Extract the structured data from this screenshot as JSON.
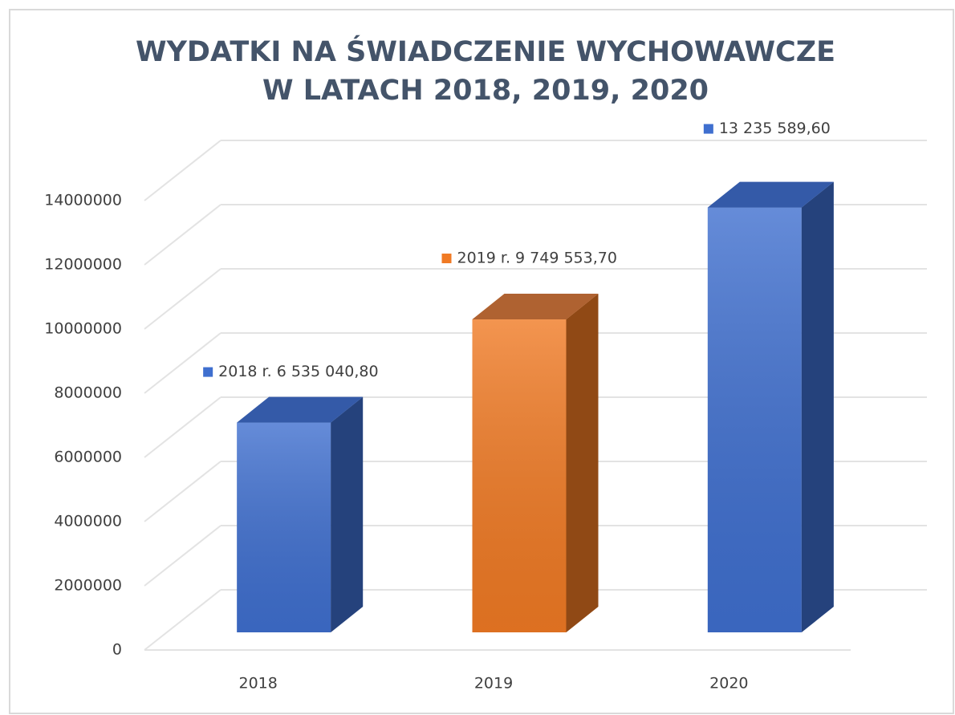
{
  "chart_data": {
    "type": "bar3d",
    "title": [
      "WYDATKI NA ŚWIADCZENIE WYCHOWAWCZE",
      "W LATACH 2018, 2019, 2020"
    ],
    "categories": [
      "2018",
      "2019",
      "2020"
    ],
    "values": [
      6535040.8,
      9749553.7,
      13235589.6
    ],
    "value_labels": [
      "2018 r. 6 535 040,80",
      "2019 r. 9 749 553,70",
      "13 235 589,60"
    ],
    "colors": [
      "#3f6fcf",
      "#f07a24",
      "#3f6fcf"
    ],
    "ylim": [
      0,
      14000000
    ],
    "yticks": [
      0,
      2000000,
      4000000,
      6000000,
      8000000,
      10000000,
      12000000,
      14000000
    ],
    "grid": true
  }
}
